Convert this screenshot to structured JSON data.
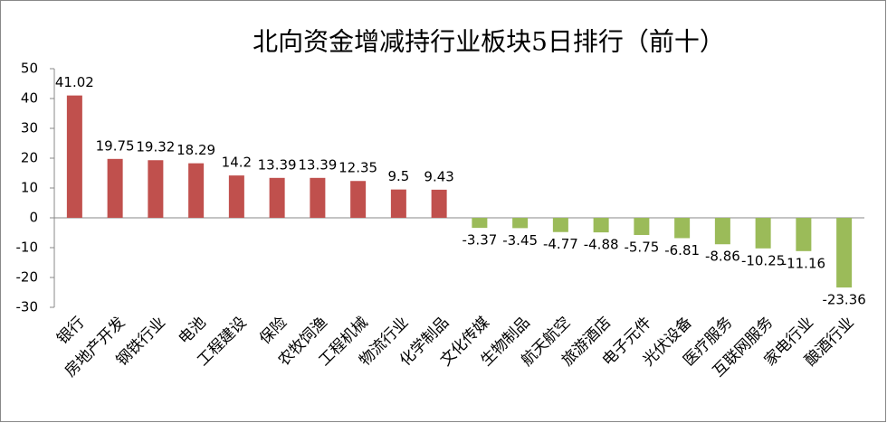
{
  "chart_data": {
    "type": "bar",
    "title": "北向资金增减持行业板块5日排行（前十）",
    "categories": [
      "银行",
      "房地产开发",
      "钢铁行业",
      "电池",
      "工程建设",
      "保险",
      "农牧饲渔",
      "工程机械",
      "物流行业",
      "化学制品",
      "文化传媒",
      "生物制品",
      "航天航空",
      "旅游酒店",
      "电子元件",
      "光伏设备",
      "医疗服务",
      "互联网服务",
      "家电行业",
      "酿酒行业"
    ],
    "values": [
      41.02,
      19.75,
      19.32,
      18.29,
      14.2,
      13.39,
      13.39,
      12.35,
      9.5,
      9.43,
      -3.37,
      -3.45,
      -4.77,
      -4.88,
      -5.75,
      -6.81,
      -8.86,
      -10.25,
      -11.16,
      -23.36
    ],
    "positive_color": "#c0504d",
    "negative_color": "#9bbb59",
    "ylim": [
      -30,
      50
    ],
    "yticks": [
      -30,
      -20,
      -10,
      0,
      10,
      20,
      30,
      40,
      50
    ],
    "grid": false
  }
}
